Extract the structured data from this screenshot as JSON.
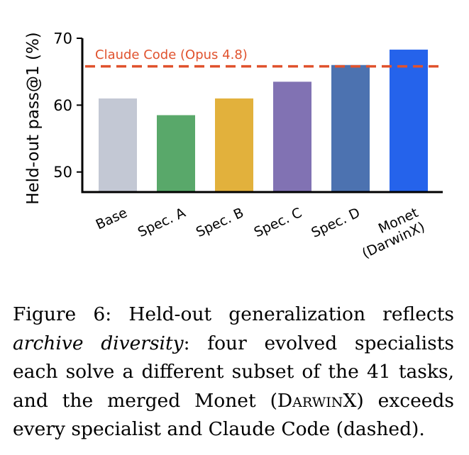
{
  "chart_data": {
    "type": "bar",
    "categories": [
      [
        "Base"
      ],
      [
        "Spec. A"
      ],
      [
        "Spec. B"
      ],
      [
        "Spec. C"
      ],
      [
        "Spec. D"
      ],
      [
        "Monet",
        "(DarwinX)"
      ]
    ],
    "values": [
      61.0,
      58.5,
      61.0,
      63.5,
      66.0,
      68.3
    ],
    "colors": [
      "#c3c8d4",
      "#59a86a",
      "#e2b13c",
      "#8172b3",
      "#4c72b0",
      "#2563eb"
    ],
    "ylabel": "Held-out pass@1 (%)",
    "ylim": [
      47,
      70
    ],
    "yticks": [
      50,
      60,
      70
    ],
    "reference_line": {
      "label": "Claude Code (Opus 4.8)",
      "value": 65.8,
      "color": "#e0522d",
      "style": "dashed"
    },
    "grid": false,
    "legend": "none"
  },
  "caption": {
    "figure_label": "Figure 6:",
    "lead": "Held-out generalization reflects",
    "emph": "archive diversity",
    "body_1": ": four evolved specialists each solve a different subset of the 41 tasks, and the merged Monet (",
    "smallcaps": "Darwin",
    "tail_x": "X",
    "body_2": ") exceeds every specialist and Claude Code (dashed)."
  }
}
